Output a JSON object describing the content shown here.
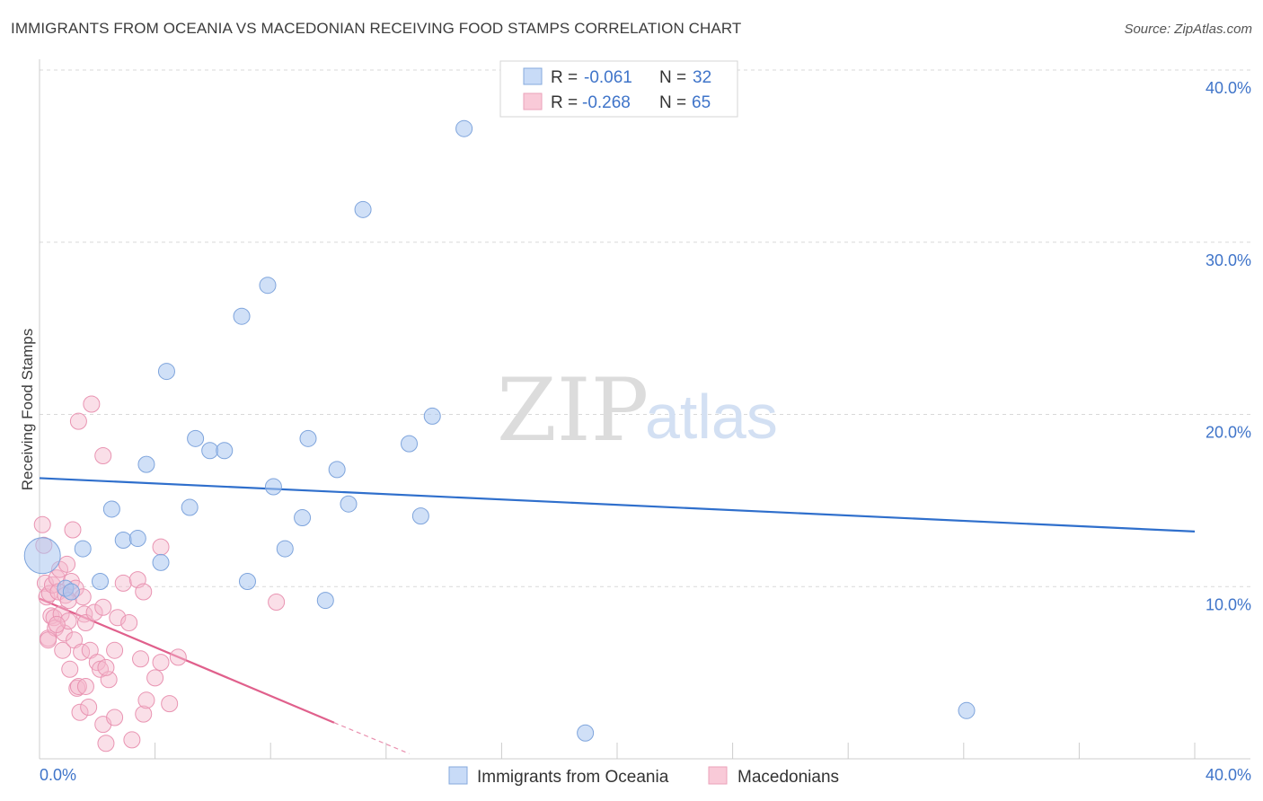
{
  "title": "IMMIGRANTS FROM OCEANIA VS MACEDONIAN RECEIVING FOOD STAMPS CORRELATION CHART",
  "source": "Source: ZipAtlas.com",
  "watermark": {
    "zip": "ZIP",
    "atlas": "atlas"
  },
  "legend": {
    "rows": [
      {
        "r_label": "R =",
        "r_value": "-0.061",
        "n_label": "N =",
        "n_value": "32"
      },
      {
        "r_label": "R =",
        "r_value": "-0.268",
        "n_label": "N =",
        "n_value": "65"
      }
    ]
  },
  "chart_data": {
    "type": "scatter",
    "xlabel": "",
    "ylabel": "Receiving Food Stamps",
    "xlim": [
      0,
      40
    ],
    "ylim": [
      0,
      40
    ],
    "x_tick_labels": [
      "0.0%",
      "40.0%"
    ],
    "y_tick_values": [
      10,
      20,
      30,
      40
    ],
    "y_tick_labels": [
      "10.0%",
      "20.0%",
      "30.0%",
      "40.0%"
    ],
    "grid": true,
    "legend_position": "top-center",
    "series": [
      {
        "name": "Immigrants from Oceania",
        "color": "#a9c6f0",
        "line_color": "#2f6fcc",
        "r": -0.061,
        "n": 32,
        "trend": {
          "x": [
            0,
            40
          ],
          "y": [
            16.3,
            13.2
          ]
        },
        "points": [
          {
            "x": 0.1,
            "y": 11.8,
            "big": true
          },
          {
            "x": 0.9,
            "y": 9.9
          },
          {
            "x": 1.1,
            "y": 9.7
          },
          {
            "x": 1.5,
            "y": 12.2
          },
          {
            "x": 2.1,
            "y": 10.3
          },
          {
            "x": 2.5,
            "y": 14.5
          },
          {
            "x": 2.9,
            "y": 12.7
          },
          {
            "x": 3.4,
            "y": 12.8
          },
          {
            "x": 3.7,
            "y": 17.1
          },
          {
            "x": 4.2,
            "y": 11.4
          },
          {
            "x": 4.4,
            "y": 22.5
          },
          {
            "x": 5.2,
            "y": 14.6
          },
          {
            "x": 5.4,
            "y": 18.6
          },
          {
            "x": 5.9,
            "y": 17.9
          },
          {
            "x": 6.4,
            "y": 17.9
          },
          {
            "x": 7.0,
            "y": 25.7
          },
          {
            "x": 7.2,
            "y": 10.3
          },
          {
            "x": 7.9,
            "y": 27.5
          },
          {
            "x": 8.1,
            "y": 15.8
          },
          {
            "x": 8.5,
            "y": 12.2
          },
          {
            "x": 9.1,
            "y": 14.0
          },
          {
            "x": 9.3,
            "y": 18.6
          },
          {
            "x": 9.9,
            "y": 9.2
          },
          {
            "x": 10.3,
            "y": 16.8
          },
          {
            "x": 10.7,
            "y": 14.8
          },
          {
            "x": 11.2,
            "y": 31.9
          },
          {
            "x": 12.8,
            "y": 18.3
          },
          {
            "x": 13.2,
            "y": 14.1
          },
          {
            "x": 13.6,
            "y": 19.9
          },
          {
            "x": 14.7,
            "y": 36.6
          },
          {
            "x": 18.9,
            "y": 1.5
          },
          {
            "x": 32.1,
            "y": 2.8
          }
        ]
      },
      {
        "name": "Macedonians",
        "color": "#f5b8cb",
        "line_color": "#e0608c",
        "r": -0.268,
        "n": 65,
        "trend": {
          "x": [
            0,
            10.2
          ],
          "y": [
            9.3,
            2.1
          ]
        },
        "trend_dashed": {
          "x": [
            10.2,
            12.8
          ],
          "y": [
            2.1,
            0.3
          ]
        },
        "points": [
          {
            "x": 0.1,
            "y": 13.6
          },
          {
            "x": 0.15,
            "y": 12.4
          },
          {
            "x": 0.2,
            "y": 10.2
          },
          {
            "x": 0.25,
            "y": 9.4
          },
          {
            "x": 0.3,
            "y": 7.0
          },
          {
            "x": 0.35,
            "y": 9.6
          },
          {
            "x": 0.4,
            "y": 8.3
          },
          {
            "x": 0.45,
            "y": 10.1
          },
          {
            "x": 0.5,
            "y": 8.2
          },
          {
            "x": 0.55,
            "y": 7.6
          },
          {
            "x": 0.6,
            "y": 10.5
          },
          {
            "x": 0.65,
            "y": 9.7
          },
          {
            "x": 0.7,
            "y": 11.0
          },
          {
            "x": 0.75,
            "y": 8.4
          },
          {
            "x": 0.8,
            "y": 6.3
          },
          {
            "x": 0.85,
            "y": 7.3
          },
          {
            "x": 0.9,
            "y": 9.5
          },
          {
            "x": 0.95,
            "y": 11.3
          },
          {
            "x": 1.0,
            "y": 8.0
          },
          {
            "x": 1.05,
            "y": 5.2
          },
          {
            "x": 1.1,
            "y": 10.3
          },
          {
            "x": 1.15,
            "y": 13.3
          },
          {
            "x": 1.2,
            "y": 6.9
          },
          {
            "x": 1.25,
            "y": 9.9
          },
          {
            "x": 1.3,
            "y": 4.1
          },
          {
            "x": 1.35,
            "y": 4.2
          },
          {
            "x": 1.4,
            "y": 2.7
          },
          {
            "x": 1.45,
            "y": 6.2
          },
          {
            "x": 1.5,
            "y": 9.4
          },
          {
            "x": 1.55,
            "y": 8.4
          },
          {
            "x": 1.6,
            "y": 7.9
          },
          {
            "x": 1.7,
            "y": 3.0
          },
          {
            "x": 1.75,
            "y": 6.3
          },
          {
            "x": 1.8,
            "y": 20.6
          },
          {
            "x": 1.9,
            "y": 8.5
          },
          {
            "x": 2.0,
            "y": 5.6
          },
          {
            "x": 1.35,
            "y": 19.6
          },
          {
            "x": 2.1,
            "y": 5.2
          },
          {
            "x": 2.2,
            "y": 8.8
          },
          {
            "x": 2.3,
            "y": 0.9
          },
          {
            "x": 2.4,
            "y": 4.6
          },
          {
            "x": 2.2,
            "y": 2.0
          },
          {
            "x": 2.2,
            "y": 17.6
          },
          {
            "x": 2.6,
            "y": 6.3
          },
          {
            "x": 2.6,
            "y": 2.4
          },
          {
            "x": 2.7,
            "y": 8.2
          },
          {
            "x": 2.9,
            "y": 10.2
          },
          {
            "x": 3.1,
            "y": 7.9
          },
          {
            "x": 3.2,
            "y": 1.1
          },
          {
            "x": 3.5,
            "y": 5.8
          },
          {
            "x": 3.4,
            "y": 10.4
          },
          {
            "x": 3.6,
            "y": 9.7
          },
          {
            "x": 3.6,
            "y": 2.6
          },
          {
            "x": 3.7,
            "y": 3.4
          },
          {
            "x": 4.0,
            "y": 4.7
          },
          {
            "x": 4.2,
            "y": 5.6
          },
          {
            "x": 4.2,
            "y": 12.3
          },
          {
            "x": 4.5,
            "y": 3.2
          },
          {
            "x": 4.8,
            "y": 5.9
          },
          {
            "x": 8.2,
            "y": 9.1
          },
          {
            "x": 1.0,
            "y": 9.2
          },
          {
            "x": 0.6,
            "y": 7.8
          },
          {
            "x": 1.6,
            "y": 4.2
          },
          {
            "x": 2.3,
            "y": 5.3
          },
          {
            "x": 0.3,
            "y": 6.9
          }
        ]
      }
    ],
    "bottom_legend": [
      "Immigrants from Oceania",
      "Macedonians"
    ]
  }
}
